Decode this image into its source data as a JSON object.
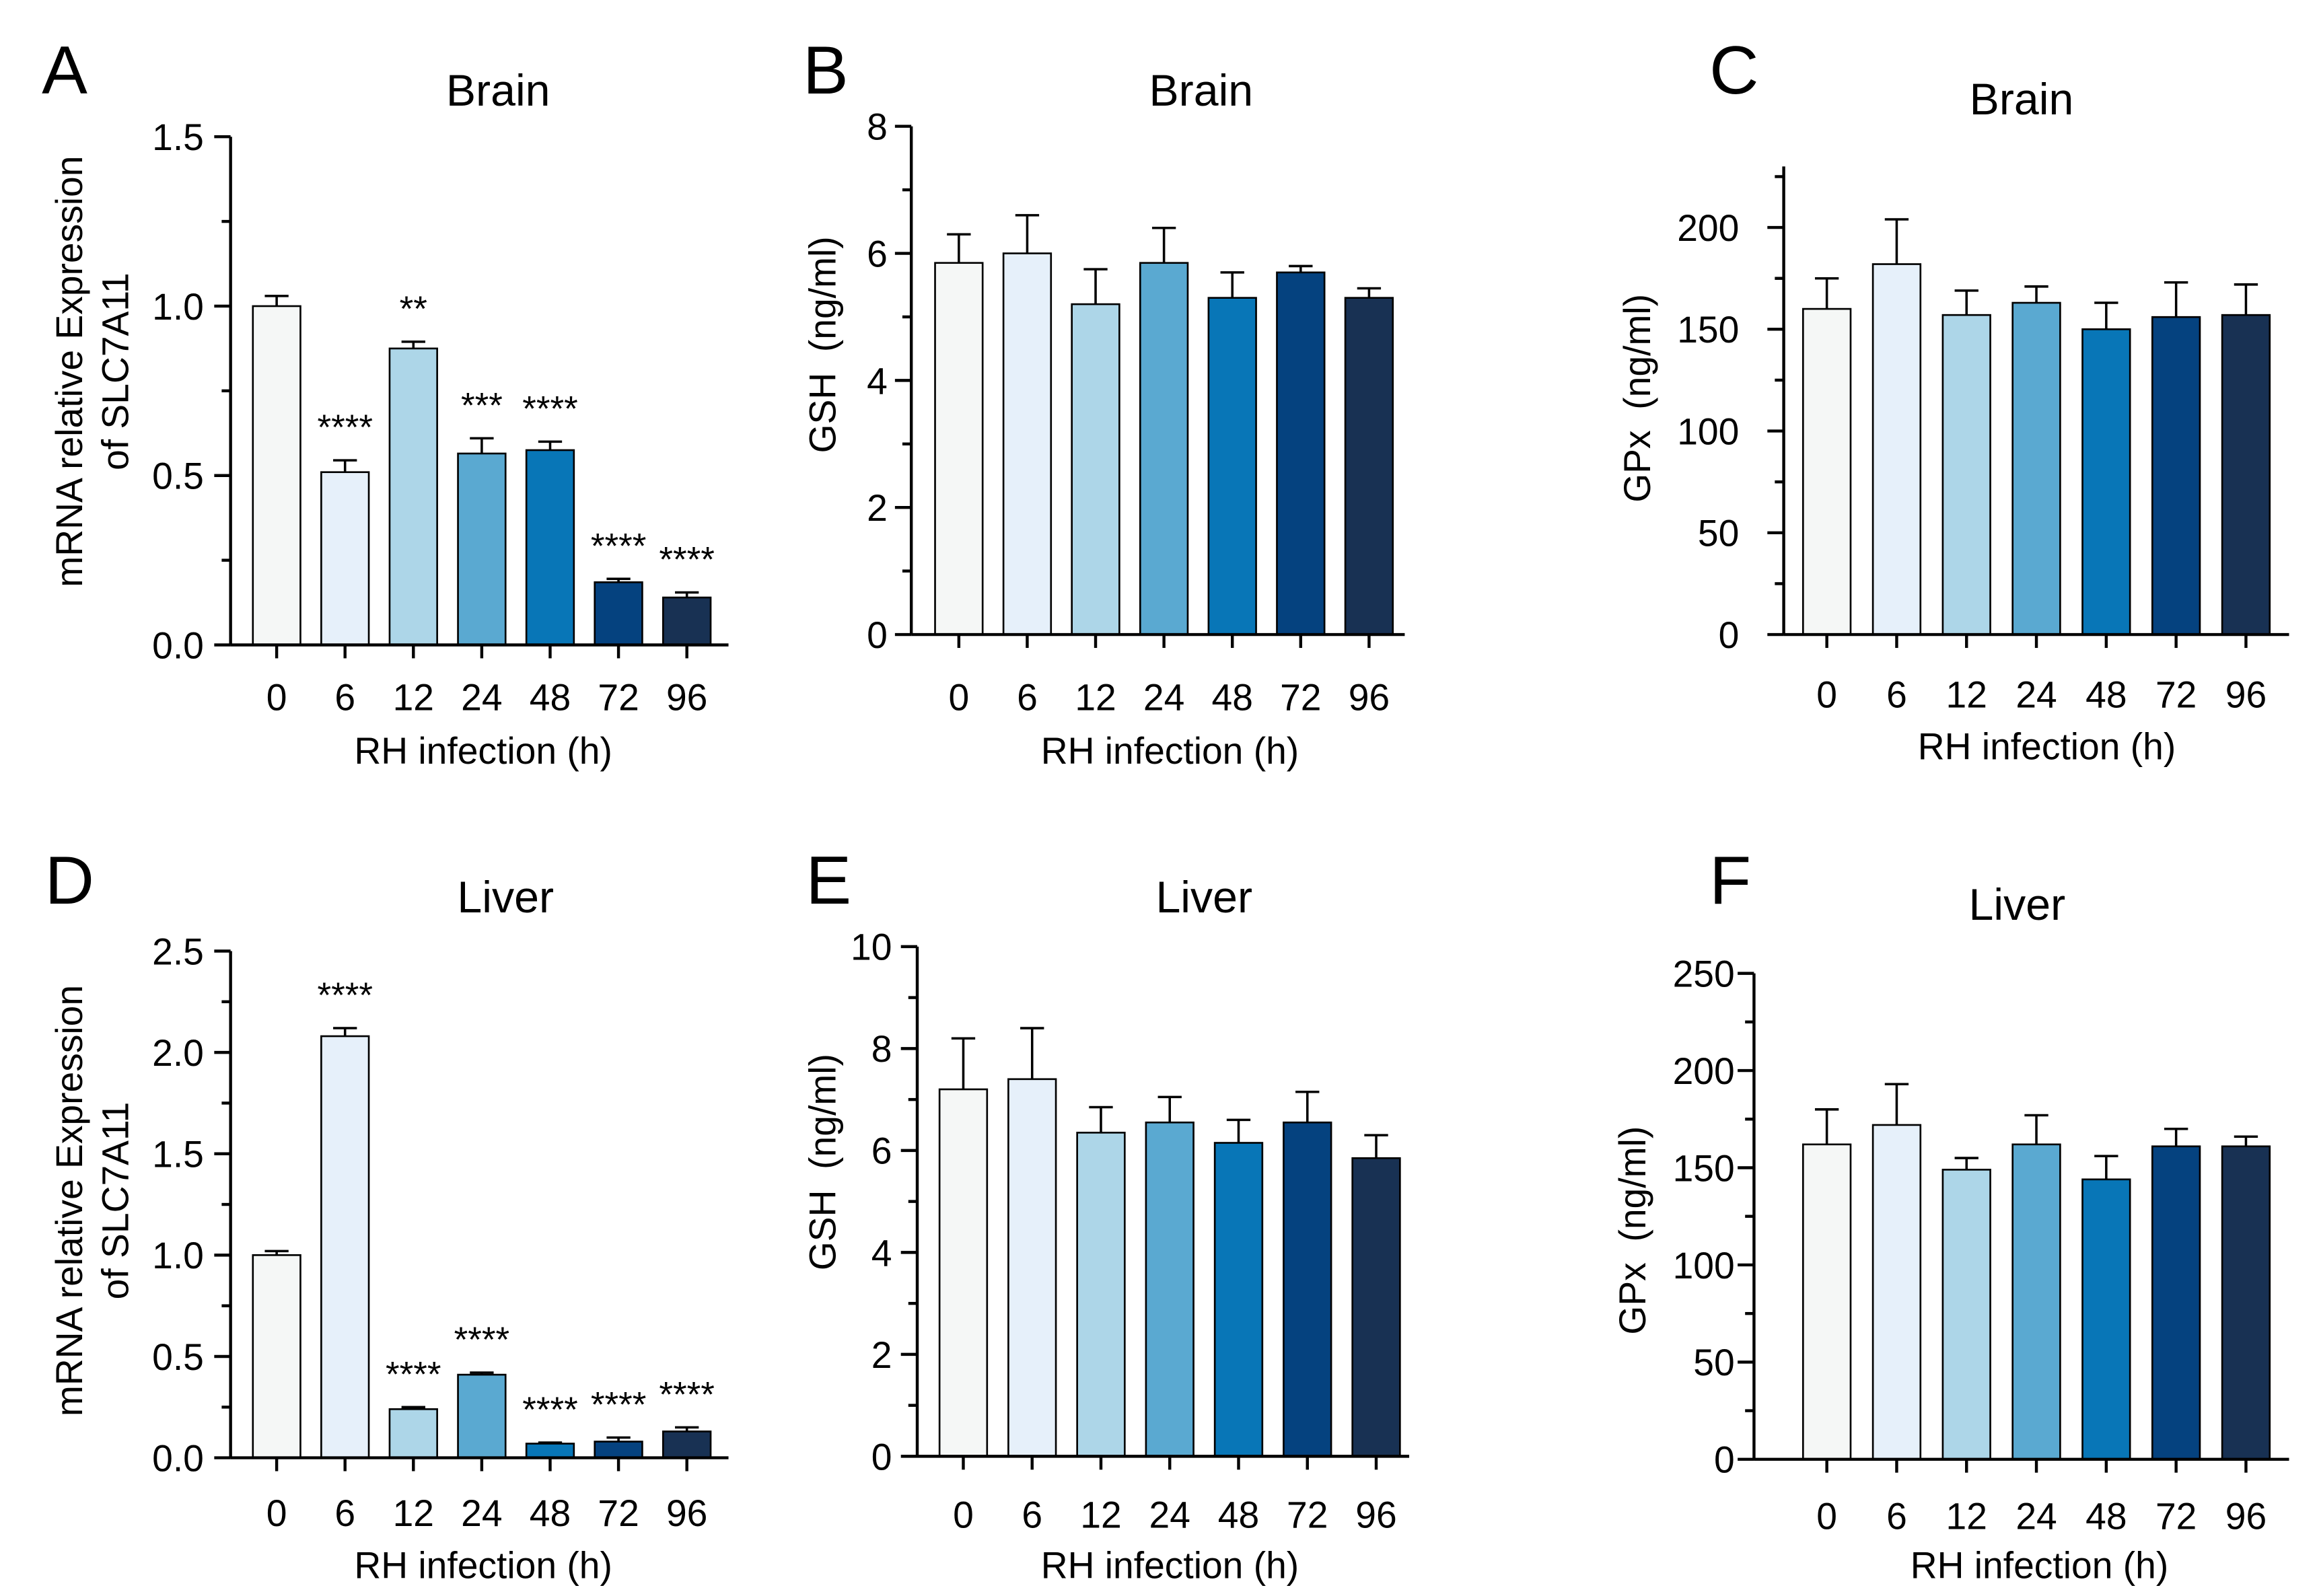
{
  "bar_colors": [
    "#f5f7f6",
    "#e6f0fa",
    "#add6e8",
    "#5aa9d1",
    "#0876b7",
    "#05427f",
    "#183153"
  ],
  "chart_data": [
    {
      "panel": "A",
      "type": "bar",
      "title": "Brain",
      "ylabel": [
        "mRNA relative Expression",
        "of SLC7A11"
      ],
      "xlabel": "RH infection (h)",
      "categories": [
        "0",
        "6",
        "12",
        "24",
        "48",
        "72",
        "96"
      ],
      "values": [
        1.0,
        0.51,
        0.875,
        0.565,
        0.575,
        0.185,
        0.14
      ],
      "errors": [
        0.03,
        0.035,
        0.02,
        0.045,
        0.025,
        0.01,
        0.015
      ],
      "significance": [
        "",
        "****",
        "**",
        "***",
        "****",
        "****",
        "****"
      ],
      "ylim": [
        0,
        1.5
      ],
      "yticks": [
        0,
        0.5,
        1.0,
        1.5
      ],
      "ytick_labels": [
        "0.0",
        "0.5",
        "1.0",
        "1.5"
      ],
      "grid": false
    },
    {
      "panel": "B",
      "type": "bar",
      "title": "Brain",
      "ylabel": [
        "GSH  (ng/ml)"
      ],
      "xlabel": "RH infection (h)",
      "categories": [
        "0",
        "6",
        "12",
        "24",
        "48",
        "72",
        "96"
      ],
      "values": [
        5.85,
        6.0,
        5.2,
        5.85,
        5.3,
        5.7,
        5.3
      ],
      "errors": [
        0.45,
        0.6,
        0.55,
        0.55,
        0.4,
        0.1,
        0.15
      ],
      "ylim": [
        0,
        8
      ],
      "yticks": [
        0,
        2,
        4,
        6,
        8
      ],
      "ytick_labels": [
        "0",
        "2",
        "4",
        "6",
        "8"
      ],
      "grid": false
    },
    {
      "panel": "C",
      "type": "bar",
      "title": "Brain",
      "ylabel": [
        "GPx  (ng/ml)"
      ],
      "xlabel": "RH infection (h)",
      "categories": [
        "0",
        "6",
        "12",
        "24",
        "48",
        "72",
        "96"
      ],
      "values": [
        160,
        182,
        157,
        163,
        150,
        156,
        157
      ],
      "errors": [
        15,
        22,
        12,
        8,
        13,
        17,
        15
      ],
      "ylim": [
        0,
        230
      ],
      "yticks": [
        0,
        50,
        100,
        150,
        200
      ],
      "ytick_labels": [
        "0",
        "50",
        "100",
        "150",
        "200"
      ],
      "grid": false
    },
    {
      "panel": "D",
      "type": "bar",
      "title": "Liver",
      "ylabel": [
        "mRNA relative Expression",
        "of SLC7A11"
      ],
      "xlabel": "RH infection (h)",
      "categories": [
        "0",
        "6",
        "12",
        "24",
        "48",
        "72",
        "96"
      ],
      "values": [
        1.0,
        2.08,
        0.24,
        0.41,
        0.07,
        0.08,
        0.13
      ],
      "errors": [
        0.02,
        0.04,
        0.01,
        0.01,
        0.005,
        0.02,
        0.02
      ],
      "significance": [
        "",
        "****",
        "****",
        "****",
        "****",
        "****",
        "****"
      ],
      "ylim": [
        0,
        2.5
      ],
      "yticks": [
        0,
        0.5,
        1.0,
        1.5,
        2.0,
        2.5
      ],
      "ytick_labels": [
        "0.0",
        "0.5",
        "1.0",
        "1.5",
        "2.0",
        "2.5"
      ],
      "grid": false
    },
    {
      "panel": "E",
      "type": "bar",
      "title": "Liver",
      "ylabel": [
        "GSH  (ng/ml)"
      ],
      "xlabel": "RH infection (h)",
      "categories": [
        "0",
        "6",
        "12",
        "24",
        "48",
        "72",
        "96"
      ],
      "values": [
        7.2,
        7.4,
        6.35,
        6.55,
        6.15,
        6.55,
        5.85
      ],
      "errors": [
        1.0,
        1.0,
        0.5,
        0.5,
        0.45,
        0.6,
        0.45
      ],
      "ylim": [
        0,
        10
      ],
      "yticks": [
        0,
        2,
        4,
        6,
        8,
        10
      ],
      "ytick_labels": [
        "0",
        "2",
        "4",
        "6",
        "8",
        "10"
      ],
      "grid": false
    },
    {
      "panel": "F",
      "type": "bar",
      "title": "Liver",
      "ylabel": [
        "GPx  (ng/ml)"
      ],
      "xlabel": "RH infection (h)",
      "categories": [
        "0",
        "6",
        "12",
        "24",
        "48",
        "72",
        "96"
      ],
      "values": [
        162,
        172,
        149,
        162,
        144,
        161,
        161
      ],
      "errors": [
        18,
        21,
        6,
        15,
        12,
        9,
        5
      ],
      "ylim": [
        0,
        250
      ],
      "yticks": [
        0,
        50,
        100,
        150,
        200,
        250
      ],
      "ytick_labels": [
        "0",
        "50",
        "100",
        "150",
        "200",
        "250"
      ],
      "grid": false
    }
  ]
}
